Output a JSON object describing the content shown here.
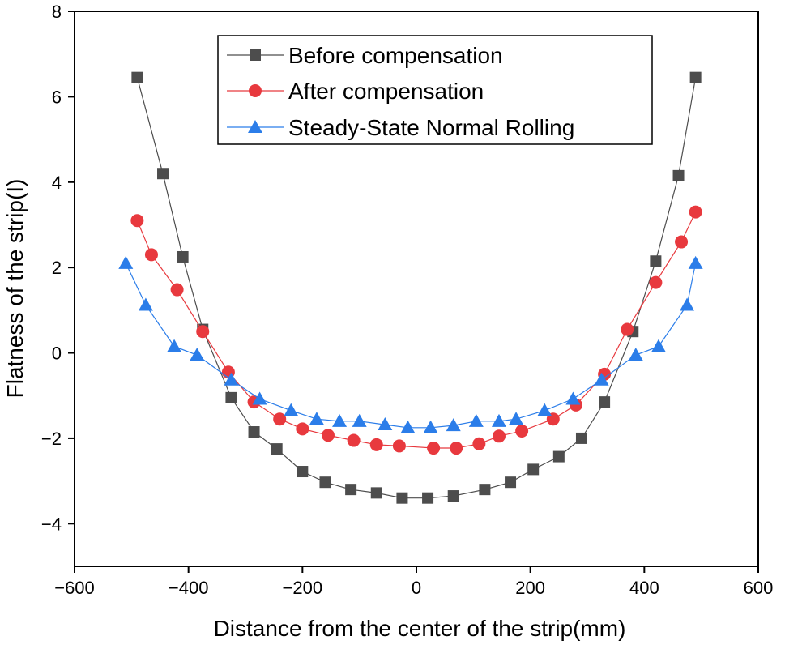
{
  "chart_data": {
    "type": "line",
    "title": "",
    "xlabel": "Distance from the center of the strip(mm)",
    "ylabel": "Flatness of the strip(I)",
    "xlim": [
      -600,
      600
    ],
    "ylim": [
      -5,
      8
    ],
    "xticks": [
      -600,
      -400,
      -200,
      0,
      200,
      400,
      600
    ],
    "xtick_labels": [
      "−600",
      "−400",
      "−200",
      "0",
      "200",
      "400",
      "600"
    ],
    "yticks": [
      -4,
      -2,
      0,
      2,
      4,
      6,
      8
    ],
    "ytick_labels": [
      "−4",
      "−2",
      "0",
      "2",
      "4",
      "6",
      "8"
    ],
    "grid": false,
    "legend": "top-center",
    "series": [
      {
        "name": "Before compensation",
        "color": "#4d4d4d",
        "marker": "square",
        "x": [
          -490,
          -445,
          -410,
          -375,
          -325,
          -285,
          -245,
          -200,
          -160,
          -115,
          -70,
          -25,
          20,
          65,
          120,
          165,
          205,
          250,
          290,
          330,
          380,
          420,
          460,
          490
        ],
        "y": [
          6.45,
          4.2,
          2.25,
          0.55,
          -1.05,
          -1.85,
          -2.25,
          -2.78,
          -3.03,
          -3.2,
          -3.28,
          -3.4,
          -3.4,
          -3.35,
          -3.2,
          -3.03,
          -2.73,
          -2.43,
          -2.0,
          -1.15,
          0.5,
          2.15,
          4.15,
          6.45
        ]
      },
      {
        "name": "After compensation",
        "color": "#e8393e",
        "marker": "circle",
        "x": [
          -490,
          -465,
          -420,
          -375,
          -330,
          -285,
          -240,
          -200,
          -155,
          -110,
          -70,
          -30,
          30,
          70,
          110,
          145,
          185,
          240,
          280,
          330,
          370,
          420,
          465,
          490
        ],
        "y": [
          3.1,
          2.3,
          1.48,
          0.5,
          -0.45,
          -1.15,
          -1.55,
          -1.78,
          -1.93,
          -2.05,
          -2.15,
          -2.18,
          -2.23,
          -2.23,
          -2.13,
          -1.95,
          -1.83,
          -1.55,
          -1.22,
          -0.5,
          0.55,
          1.65,
          2.6,
          3.3
        ]
      },
      {
        "name": "Steady-State Normal Rolling",
        "color": "#2b7de9",
        "marker": "triangle",
        "x": [
          -510,
          -475,
          -425,
          -385,
          -325,
          -275,
          -220,
          -175,
          -135,
          -100,
          -55,
          -15,
          25,
          65,
          105,
          145,
          175,
          225,
          275,
          325,
          385,
          425,
          475,
          490
        ],
        "y": [
          2.1,
          1.12,
          0.15,
          -0.05,
          -0.63,
          -1.08,
          -1.35,
          -1.55,
          -1.6,
          -1.6,
          -1.68,
          -1.75,
          -1.75,
          -1.7,
          -1.6,
          -1.6,
          -1.55,
          -1.35,
          -1.08,
          -0.63,
          -0.05,
          0.15,
          1.12,
          2.1
        ]
      }
    ]
  }
}
